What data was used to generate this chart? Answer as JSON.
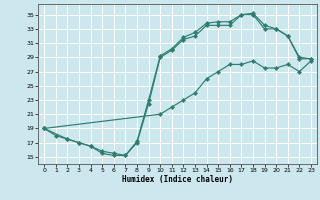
{
  "xlabel": "Humidex (Indice chaleur)",
  "bg_color": "#cce8ee",
  "grid_color": "#b0d8e0",
  "line_color": "#2e7d6e",
  "xlim": [
    -0.5,
    23.5
  ],
  "ylim": [
    14.0,
    36.5
  ],
  "xticks": [
    0,
    1,
    2,
    3,
    4,
    5,
    6,
    7,
    8,
    9,
    10,
    11,
    12,
    13,
    14,
    15,
    16,
    17,
    18,
    19,
    20,
    21,
    22,
    23
  ],
  "yticks": [
    15,
    17,
    19,
    21,
    23,
    25,
    27,
    29,
    31,
    33,
    35
  ],
  "line1_x": [
    0,
    1,
    2,
    3,
    4,
    5,
    6,
    7,
    8,
    9,
    10,
    11,
    12,
    13,
    14,
    15,
    16,
    17,
    18,
    19,
    20,
    21,
    22,
    23
  ],
  "line1_y": [
    19,
    18,
    17.5,
    17,
    16.5,
    15.5,
    15.2,
    15.2,
    17.2,
    23,
    29.2,
    30.2,
    31.8,
    32.5,
    33.8,
    34,
    34,
    35,
    35.2,
    33.5,
    33,
    32,
    29,
    28.8
  ],
  "line2_x": [
    0,
    2,
    3,
    4,
    5,
    6,
    7,
    8,
    9,
    10,
    11,
    12,
    13,
    14,
    15,
    16,
    17,
    18,
    19,
    20,
    21,
    22,
    23
  ],
  "line2_y": [
    19,
    17.5,
    17,
    16.5,
    15.8,
    15.5,
    15.2,
    17,
    22.5,
    29,
    30,
    31.5,
    32,
    33.5,
    33.5,
    33.5,
    35,
    35,
    33,
    33,
    32,
    28.8,
    28.8
  ],
  "line3_x": [
    0,
    10,
    11,
    12,
    13,
    14,
    15,
    16,
    17,
    18,
    19,
    20,
    21,
    22,
    23
  ],
  "line3_y": [
    19,
    21,
    22,
    23,
    24,
    26,
    27,
    28,
    28,
    28.5,
    27.5,
    27.5,
    28,
    27,
    28.5
  ]
}
